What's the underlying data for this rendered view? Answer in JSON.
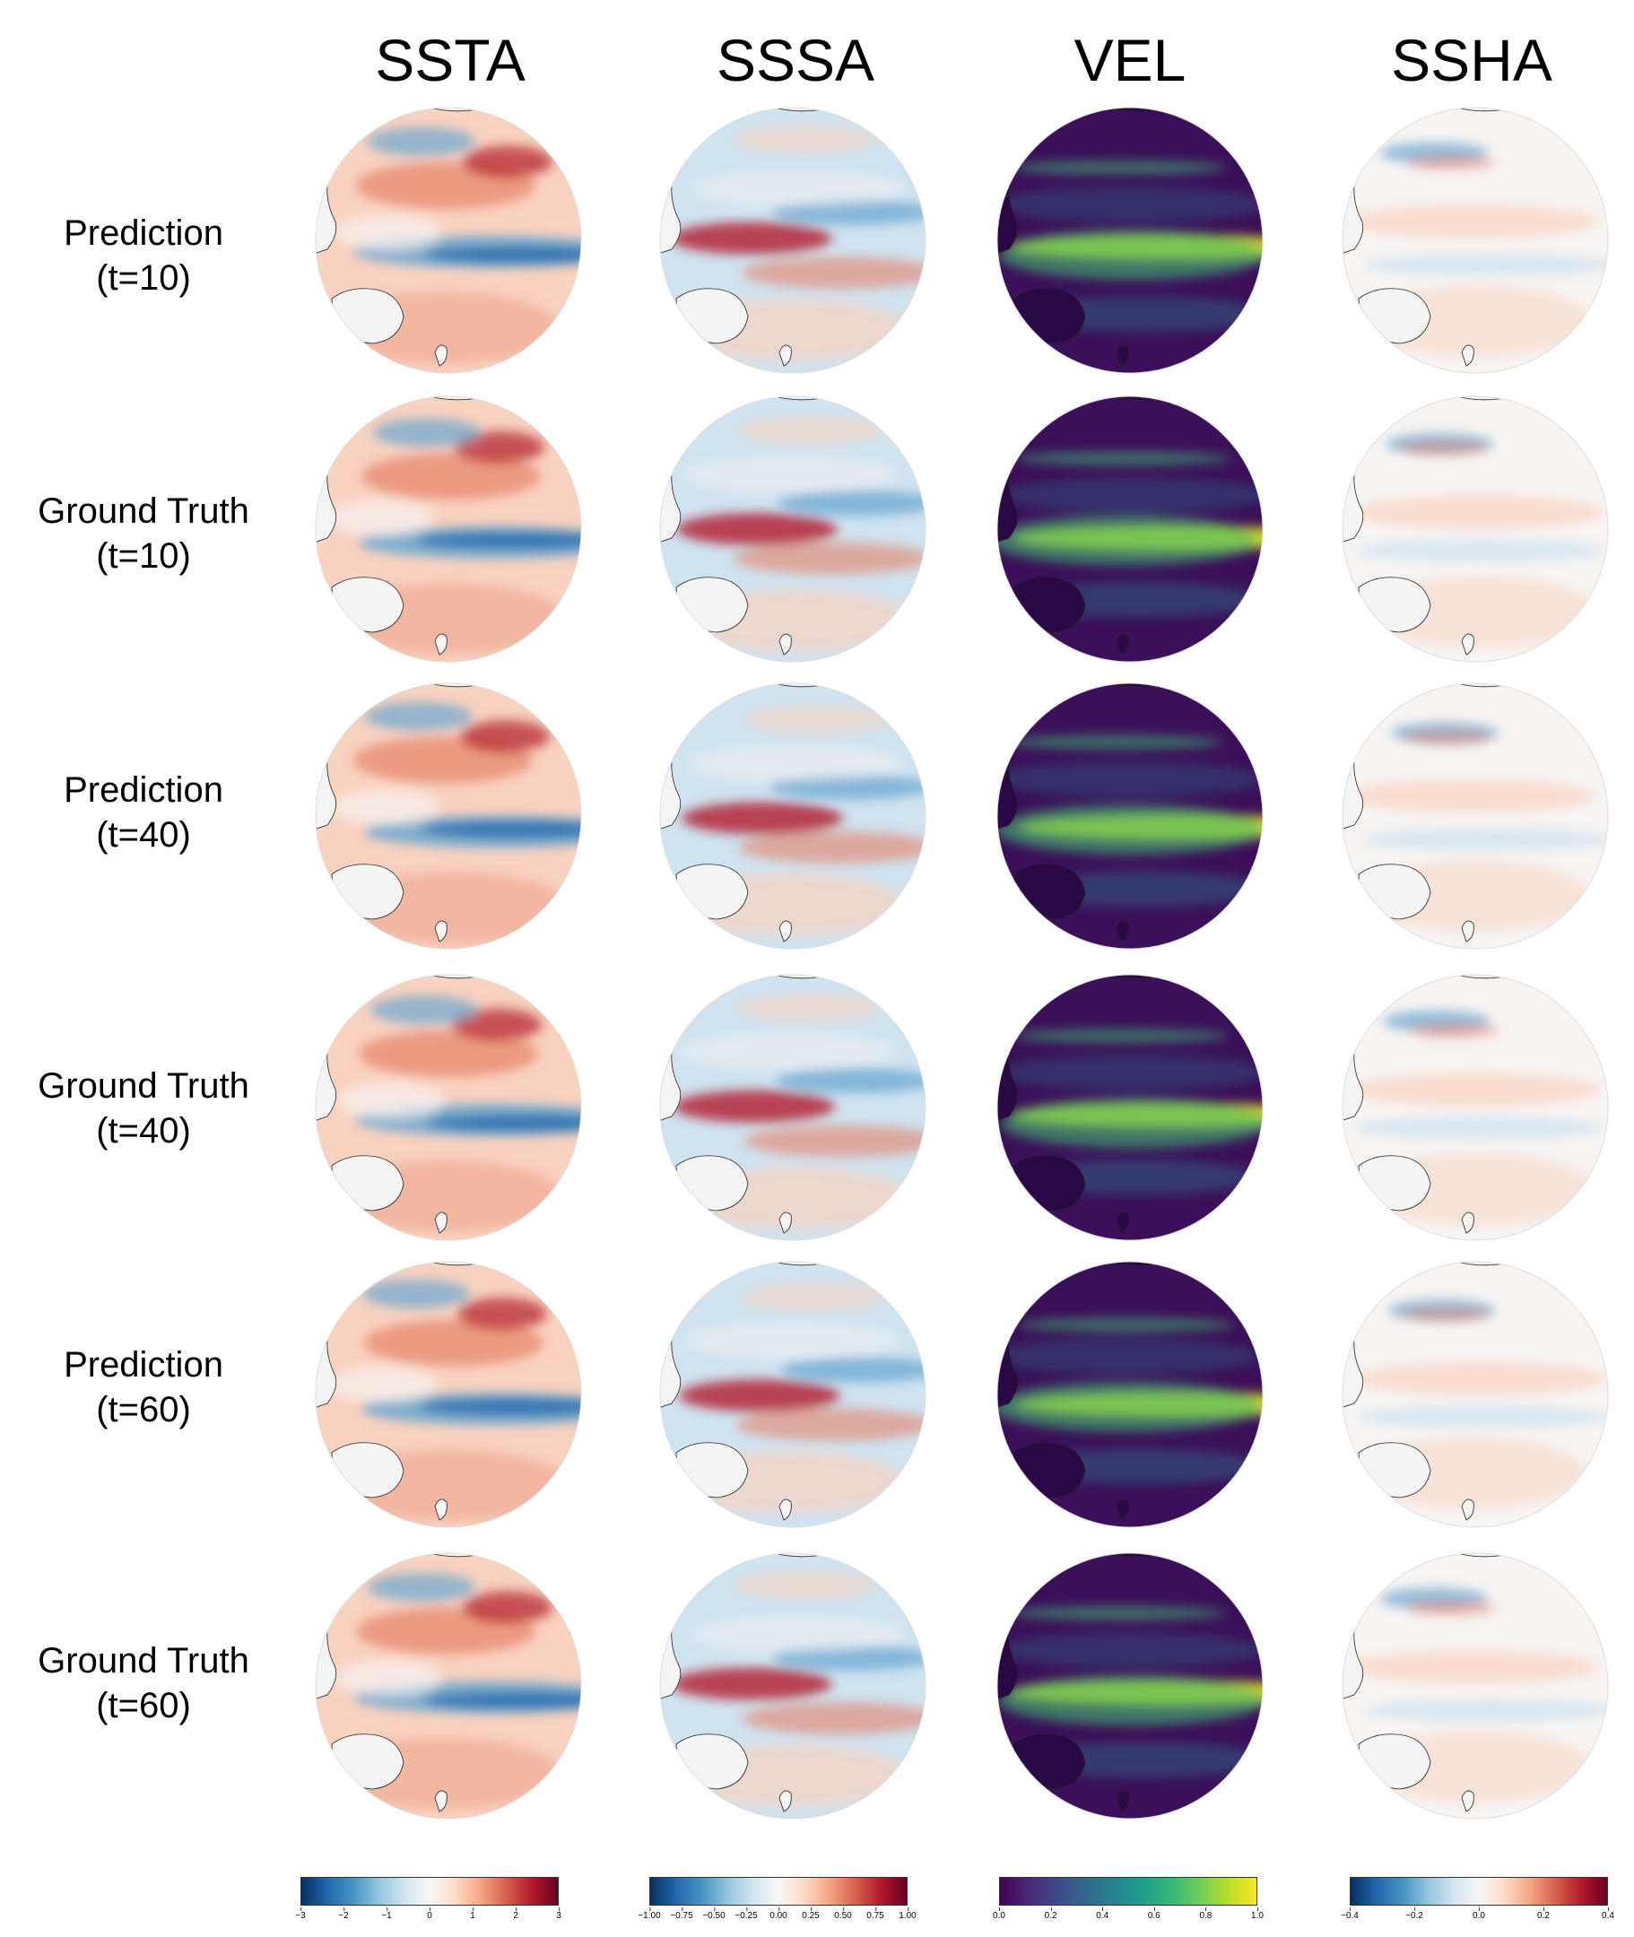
{
  "columns": [
    {
      "key": "ssta",
      "title": "SSTA",
      "colormap": "RdBu_r"
    },
    {
      "key": "sssa",
      "title": "SSSA",
      "colormap": "RdBu_r"
    },
    {
      "key": "vel",
      "title": "VEL",
      "colormap": "viridis"
    },
    {
      "key": "ssha",
      "title": "SSHA",
      "colormap": "RdBu_r"
    }
  ],
  "rows": [
    {
      "line1": "Prediction",
      "line2": "(t=10)"
    },
    {
      "line1": "Ground Truth",
      "line2": "(t=10)"
    },
    {
      "line1": "Prediction",
      "line2": "(t=40)"
    },
    {
      "line1": "Ground Truth",
      "line2": "(t=40)"
    },
    {
      "line1": "Prediction",
      "line2": "(t=60)"
    },
    {
      "line1": "Ground Truth",
      "line2": "(t=60)"
    }
  ],
  "colorbars": [
    {
      "ticks": [
        "−3",
        "−2",
        "−1",
        "0",
        "1",
        "2",
        "3"
      ]
    },
    {
      "ticks": [
        "−1.00",
        "−0.75",
        "−0.50",
        "−0.25",
        "0.00",
        "0.25",
        "0.50",
        "0.75",
        "1.00"
      ]
    },
    {
      "ticks": [
        "0.0",
        "0.2",
        "0.4",
        "0.6",
        "0.8",
        "1.0"
      ]
    },
    {
      "ticks": [
        "−0.4",
        "−0.2",
        "0.0",
        "0.2",
        "0.4"
      ]
    }
  ],
  "colors": {
    "red_strong": "#b2182b",
    "red_mid": "#e58267",
    "red_light": "#f9d2c0",
    "blue_strong": "#2166ac",
    "blue_mid": "#6aa7d0",
    "blue_light": "#cfe3f0",
    "neutral": "#f7f4f2",
    "land": "#f4f4f4",
    "viridis_dark": "#3b0f59",
    "viridis_mid": "#2d6e8e",
    "viridis_green": "#3fbc73",
    "viridis_yellow": "#e8e51a"
  }
}
